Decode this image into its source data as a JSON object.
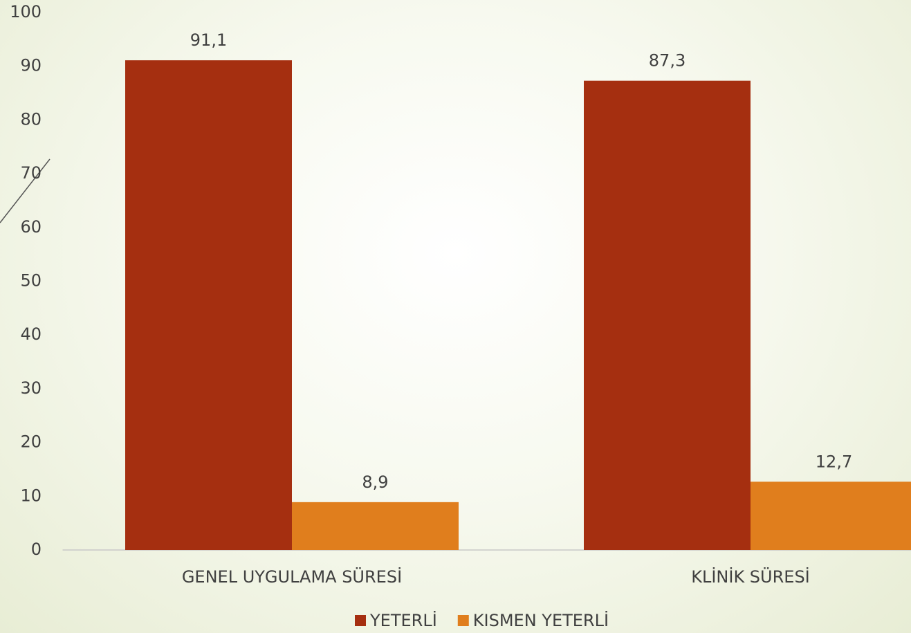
{
  "chart_data": {
    "type": "bar",
    "categories": [
      "GENEL UYGULAMA SÜRESİ",
      "KLİNİK SÜRESİ"
    ],
    "series": [
      {
        "name": "YETERLİ",
        "color": "#a52f10",
        "values": [
          91.1,
          87.3
        ],
        "value_labels": [
          "91,1",
          "87,3"
        ]
      },
      {
        "name": "KISMEN YETERLİ",
        "color": "#e07e1d",
        "values": [
          8.9,
          12.7
        ],
        "value_labels": [
          "8,9",
          "12,7"
        ]
      }
    ],
    "ylim": [
      0,
      100
    ],
    "yticks": [
      0,
      10,
      20,
      30,
      40,
      50,
      60,
      70,
      80,
      90,
      100
    ],
    "grid": false,
    "legend": "bottom"
  }
}
